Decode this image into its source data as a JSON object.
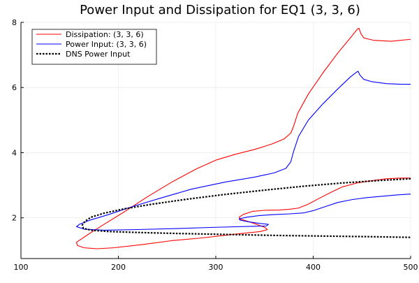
{
  "chart_data": {
    "type": "line",
    "title": "Power Input and Dissipation for EQ1 (3, 3, 6)",
    "xlabel": "",
    "ylabel": "",
    "xlim": [
      100,
      500
    ],
    "ylim": [
      0.75,
      8
    ],
    "x_ticks": [
      100,
      200,
      300,
      400,
      500
    ],
    "y_ticks": [
      2,
      4,
      6,
      8
    ],
    "grid": true,
    "legend_position": "top-left",
    "series": [
      {
        "name": "Dissipation: (3, 3, 6)",
        "color": "#ff0000",
        "dash": "solid",
        "points": [
          [
            500,
            3.22
          ],
          [
            490,
            3.22
          ],
          [
            475,
            3.2
          ],
          [
            460,
            3.14
          ],
          [
            445,
            3.07
          ],
          [
            430,
            2.95
          ],
          [
            418,
            2.78
          ],
          [
            405,
            2.58
          ],
          [
            395,
            2.42
          ],
          [
            385,
            2.3
          ],
          [
            375,
            2.26
          ],
          [
            365,
            2.24
          ],
          [
            350,
            2.23
          ],
          [
            338,
            2.2
          ],
          [
            328,
            2.1
          ],
          [
            324,
            2.02
          ],
          [
            325,
            1.96
          ],
          [
            332,
            1.9
          ],
          [
            342,
            1.8
          ],
          [
            350,
            1.71
          ],
          [
            353,
            1.64
          ],
          [
            346,
            1.58
          ],
          [
            320,
            1.5
          ],
          [
            285,
            1.38
          ],
          [
            255,
            1.3
          ],
          [
            225,
            1.18
          ],
          [
            195,
            1.08
          ],
          [
            178,
            1.05
          ],
          [
            165,
            1.08
          ],
          [
            158,
            1.15
          ],
          [
            157,
            1.25
          ],
          [
            162,
            1.35
          ],
          [
            172,
            1.55
          ],
          [
            188,
            1.85
          ],
          [
            208,
            2.22
          ],
          [
            230,
            2.65
          ],
          [
            255,
            3.1
          ],
          [
            280,
            3.5
          ],
          [
            300,
            3.77
          ],
          [
            320,
            3.95
          ],
          [
            340,
            4.1
          ],
          [
            358,
            4.27
          ],
          [
            370,
            4.42
          ],
          [
            377,
            4.6
          ],
          [
            380,
            4.82
          ],
          [
            384,
            5.2
          ],
          [
            395,
            5.8
          ],
          [
            410,
            6.45
          ],
          [
            425,
            7.05
          ],
          [
            438,
            7.52
          ],
          [
            445,
            7.78
          ],
          [
            447,
            7.82
          ],
          [
            449,
            7.65
          ],
          [
            452,
            7.52
          ],
          [
            462,
            7.45
          ],
          [
            480,
            7.42
          ],
          [
            500,
            7.48
          ]
        ]
      },
      {
        "name": "Power Input: (3, 3, 6)",
        "color": "#0000ff",
        "dash": "solid",
        "points": [
          [
            500,
            2.73
          ],
          [
            485,
            2.7
          ],
          [
            470,
            2.66
          ],
          [
            455,
            2.62
          ],
          [
            440,
            2.56
          ],
          [
            425,
            2.47
          ],
          [
            412,
            2.34
          ],
          [
            400,
            2.22
          ],
          [
            390,
            2.15
          ],
          [
            375,
            2.12
          ],
          [
            360,
            2.1
          ],
          [
            345,
            2.07
          ],
          [
            332,
            2.02
          ],
          [
            324,
            1.97
          ],
          [
            325,
            1.93
          ],
          [
            333,
            1.88
          ],
          [
            345,
            1.83
          ],
          [
            354,
            1.8
          ],
          [
            352,
            1.75
          ],
          [
            340,
            1.74
          ],
          [
            300,
            1.71
          ],
          [
            260,
            1.67
          ],
          [
            220,
            1.64
          ],
          [
            185,
            1.62
          ],
          [
            165,
            1.65
          ],
          [
            157,
            1.73
          ],
          [
            160,
            1.8
          ],
          [
            170,
            1.92
          ],
          [
            190,
            2.1
          ],
          [
            215,
            2.35
          ],
          [
            245,
            2.62
          ],
          [
            275,
            2.88
          ],
          [
            310,
            3.1
          ],
          [
            340,
            3.25
          ],
          [
            360,
            3.38
          ],
          [
            372,
            3.52
          ],
          [
            377,
            3.72
          ],
          [
            380,
            4.05
          ],
          [
            385,
            4.5
          ],
          [
            395,
            5.0
          ],
          [
            410,
            5.5
          ],
          [
            425,
            5.95
          ],
          [
            438,
            6.32
          ],
          [
            444,
            6.46
          ],
          [
            446,
            6.5
          ],
          [
            448,
            6.38
          ],
          [
            452,
            6.25
          ],
          [
            460,
            6.18
          ],
          [
            475,
            6.12
          ],
          [
            490,
            6.1
          ],
          [
            500,
            6.1
          ]
        ]
      },
      {
        "name": "DNS Power Input",
        "color": "#000000",
        "dash": "dotted",
        "points": [
          [
            500,
            3.2
          ],
          [
            470,
            3.15
          ],
          [
            430,
            3.07
          ],
          [
            390,
            2.97
          ],
          [
            350,
            2.85
          ],
          [
            310,
            2.72
          ],
          [
            270,
            2.57
          ],
          [
            235,
            2.42
          ],
          [
            205,
            2.27
          ],
          [
            185,
            2.14
          ],
          [
            172,
            2.02
          ],
          [
            166,
            1.9
          ],
          [
            163,
            1.78
          ],
          [
            164,
            1.68
          ],
          [
            172,
            1.62
          ],
          [
            190,
            1.58
          ],
          [
            220,
            1.55
          ],
          [
            260,
            1.52
          ],
          [
            310,
            1.49
          ],
          [
            360,
            1.46
          ],
          [
            410,
            1.44
          ],
          [
            460,
            1.42
          ],
          [
            500,
            1.4
          ]
        ]
      }
    ]
  }
}
